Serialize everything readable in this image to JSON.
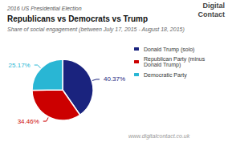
{
  "chart_data": {
    "type": "pie",
    "title": "Republicans vs Democrats vs Trump",
    "subtitle": "Share of social engagement (between July 17, 2015 - August 18, 2015)",
    "annotations": [
      "2016 US Presidential Election",
      "Digital",
      "Contact",
      "www.digitalcontact.co.uk"
    ],
    "categories": [
      "Donald Trump (solo)",
      "Republican Party (minus Donald Trump)",
      "Democratic Party"
    ],
    "values": [
      40.37,
      34.46,
      25.17
    ],
    "value_labels": [
      "40.37%",
      "34.46%",
      "25.17%"
    ],
    "colors": [
      "#1a237e",
      "#cc0000",
      "#29b6d4"
    ],
    "data_labels": true,
    "legend": "right"
  }
}
